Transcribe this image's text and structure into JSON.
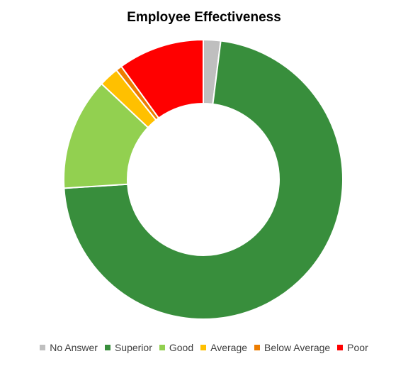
{
  "chart_data": {
    "type": "pie",
    "style": "donut",
    "title": "Employee Effectiveness",
    "categories": [
      "No Answer",
      "Superior",
      "Good",
      "Average",
      "Below Average",
      "Poor"
    ],
    "values": [
      2,
      72,
      13,
      2.3,
      0.7,
      10
    ],
    "colors": [
      "#BFBFBF",
      "#388E3C",
      "#92D050",
      "#FFC000",
      "#ED7D00",
      "#FF0000"
    ],
    "legend": "bottom"
  }
}
